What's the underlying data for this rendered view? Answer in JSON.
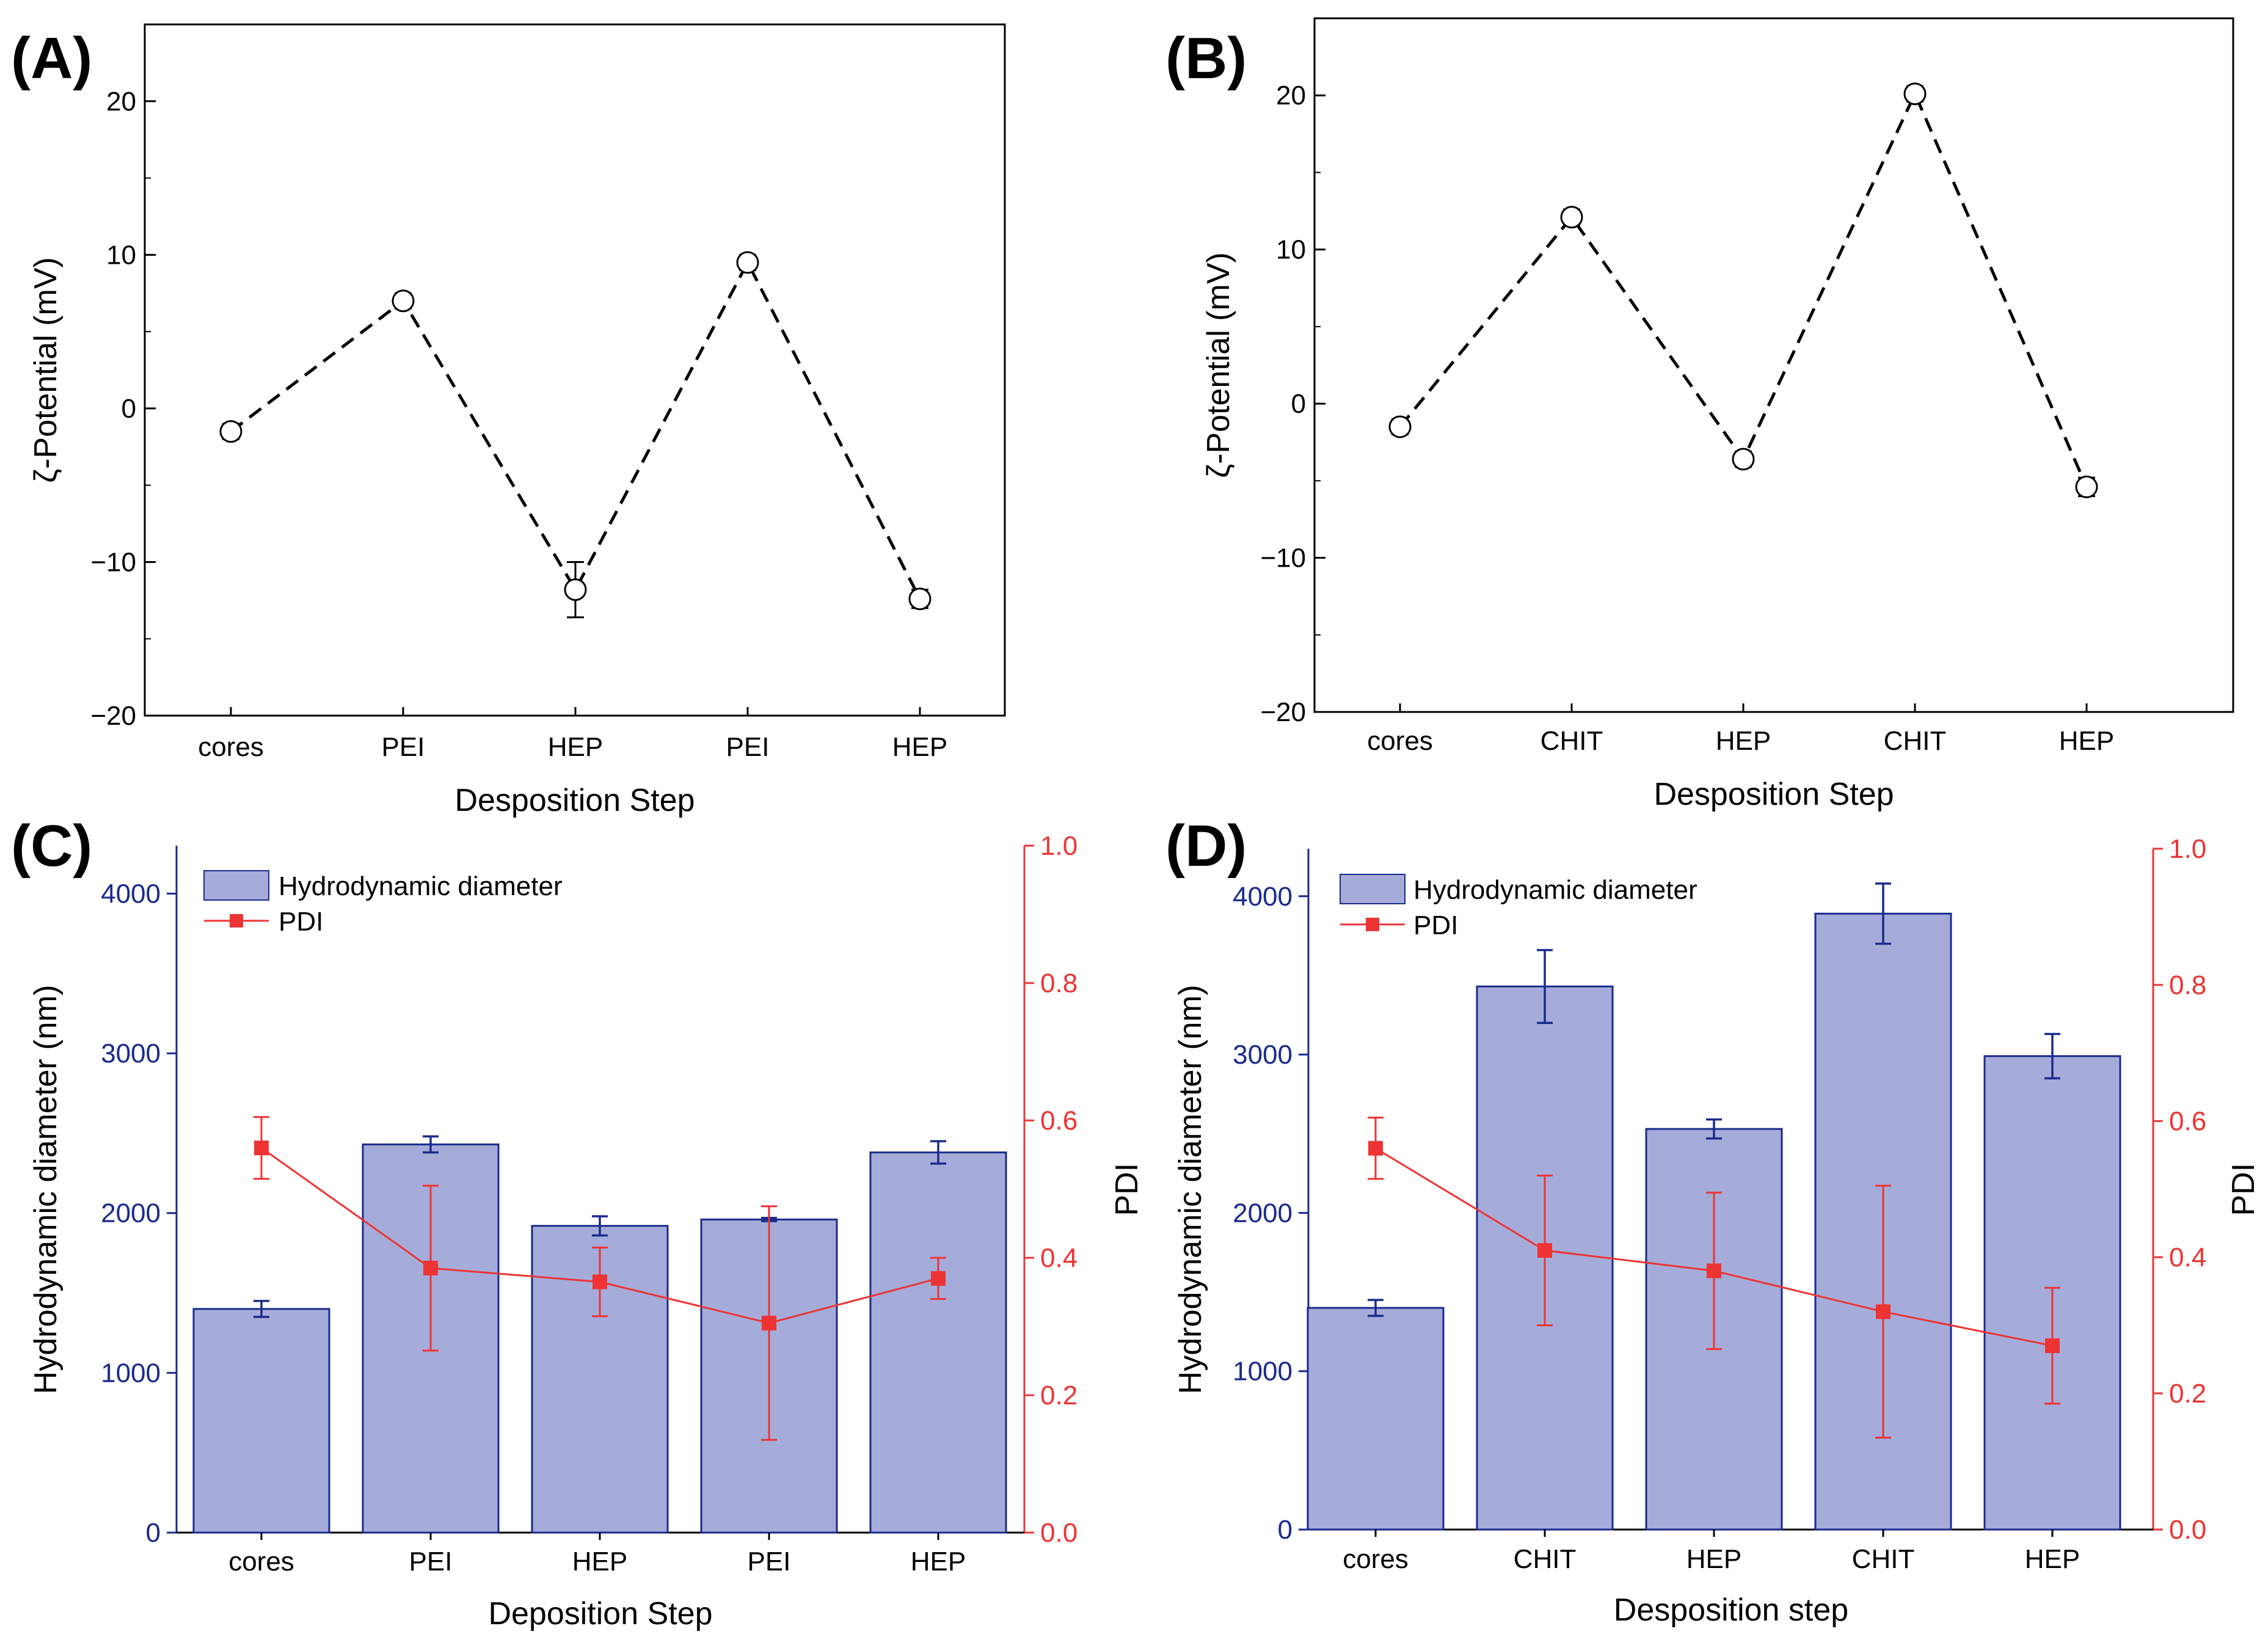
{
  "chart_data": [
    {
      "panel": "(A)",
      "type": "line",
      "categories": [
        "cores",
        "PEI",
        "HEP",
        "PEI",
        "HEP"
      ],
      "values": [
        -1.5,
        7.0,
        -11.8,
        9.5,
        -12.4
      ],
      "errors": [
        0.5,
        0.5,
        1.8,
        0.5,
        0.6
      ],
      "xlabel": "Desposition Step",
      "ylabel": "ζ-Potential (mV)",
      "ylim": [
        -20,
        25
      ],
      "yticks": [
        -20,
        -10,
        0,
        10,
        20
      ],
      "ytick_labels": [
        "−20",
        "−10",
        "0",
        "10",
        "20"
      ]
    },
    {
      "panel": "(B)",
      "type": "line",
      "categories": [
        "cores",
        "CHIT",
        "HEP",
        "CHIT",
        "HEP"
      ],
      "values": [
        -1.5,
        12.1,
        -3.6,
        20.1,
        -5.4
      ],
      "errors": [
        0.5,
        0.5,
        0.5,
        0.5,
        0.6
      ],
      "xlabel": "Desposition Step",
      "ylabel": "ζ-Potential (mV)",
      "ylim": [
        -20,
        25
      ],
      "yticks": [
        -20,
        -10,
        0,
        10,
        20
      ],
      "ytick_labels": [
        "−20",
        "−10",
        "0",
        "10",
        "20"
      ]
    },
    {
      "panel": "(C)",
      "type": "bar",
      "categories": [
        "cores",
        "PEI",
        "HEP",
        "PEI",
        "HEP"
      ],
      "series": [
        {
          "name": "Hydrodynamic diameter",
          "axis": "left",
          "values": [
            1400,
            2430,
            1920,
            1960,
            2380
          ],
          "errors": [
            50,
            50,
            60,
            10,
            70
          ]
        },
        {
          "name": "PDI",
          "axis": "right",
          "values": [
            0.56,
            0.385,
            0.365,
            0.305,
            0.37
          ],
          "errors": [
            0.045,
            0.12,
            0.05,
            0.17,
            0.03
          ]
        }
      ],
      "xlabel": "Deposition Step",
      "ylabel": "Hydrodynamic diameter (nm)",
      "y2label": "PDI",
      "ylim": [
        0,
        4300
      ],
      "yticks": [
        0,
        1000,
        2000,
        3000,
        4000
      ],
      "ytick_labels": [
        "0",
        "1000",
        "2000",
        "3000",
        "4000"
      ],
      "y2lim": [
        0,
        1.0
      ],
      "y2ticks": [
        0,
        0.2,
        0.4,
        0.6,
        0.8,
        1.0
      ],
      "y2tick_labels": [
        "0.0",
        "0.2",
        "0.4",
        "0.6",
        "0.8",
        "1.0"
      ],
      "legend": "top-left"
    },
    {
      "panel": "(D)",
      "type": "bar",
      "categories": [
        "cores",
        "CHIT",
        "HEP",
        "CHIT",
        "HEP"
      ],
      "series": [
        {
          "name": "Hydrodynamic diameter",
          "axis": "left",
          "values": [
            1400,
            3430,
            2530,
            3890,
            2990
          ],
          "errors": [
            50,
            230,
            60,
            190,
            140
          ]
        },
        {
          "name": "PDI",
          "axis": "right",
          "values": [
            0.56,
            0.41,
            0.38,
            0.32,
            0.27
          ],
          "errors": [
            0.045,
            0.11,
            0.115,
            0.185,
            0.085
          ]
        }
      ],
      "xlabel": "Desposition step",
      "ylabel": "Hydrodynamic diameter (nm)",
      "y2label": "PDI",
      "ylim": [
        0,
        4300
      ],
      "yticks": [
        0,
        1000,
        2000,
        3000,
        4000
      ],
      "ytick_labels": [
        "0",
        "1000",
        "2000",
        "3000",
        "4000"
      ],
      "y2lim": [
        0,
        1.0
      ],
      "y2ticks": [
        0,
        0.2,
        0.4,
        0.6,
        0.8,
        1.0
      ],
      "y2tick_labels": [
        "0.0",
        "0.2",
        "0.4",
        "0.6",
        "0.8",
        "1.0"
      ],
      "legend": "top-left"
    }
  ],
  "colors": {
    "bar_fill": "#a5acd9",
    "bar_edge": "#1a2a8c",
    "left_axis": "#1a2a8c",
    "pdi": "#ee3333",
    "zeta_line": "#000000"
  }
}
